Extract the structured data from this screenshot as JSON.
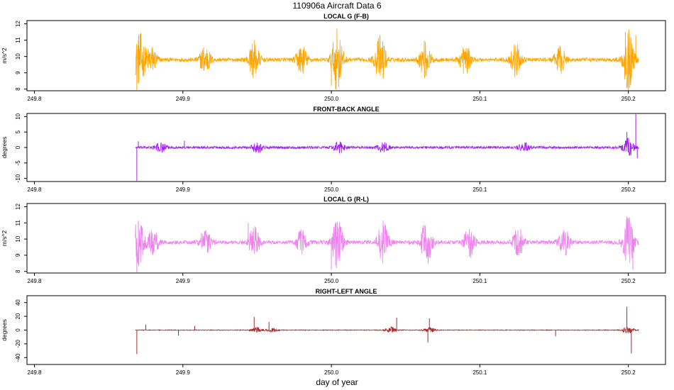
{
  "figure": {
    "title": "110906a   Aircraft Data 6",
    "xlabel": "day of year"
  },
  "chart_data": [
    {
      "type": "line",
      "title": "LOCAL G (F-B)",
      "ylabel": "m/s^2",
      "color": "#FFA500",
      "xlim": [
        249.795,
        250.225
      ],
      "ylim": [
        7.9,
        12.2
      ],
      "xticks": [
        249.8,
        249.9,
        250.0,
        250.1,
        250.2
      ],
      "xtick_labels": [
        "249.8",
        "249.9",
        "250.0",
        "250.1",
        "250.2"
      ],
      "yticks": [
        8,
        9,
        10,
        11,
        12
      ],
      "ytick_labels": [
        "8",
        "9",
        "10",
        "11",
        "12"
      ],
      "data_range": [
        249.868,
        250.207
      ],
      "baseline": 9.8,
      "noise": 0.12,
      "bursts": [
        {
          "x": 249.871,
          "amp": 1.6
        },
        {
          "x": 249.879,
          "amp": 0.8
        },
        {
          "x": 249.915,
          "amp": 0.9
        },
        {
          "x": 249.948,
          "amp": 1.1
        },
        {
          "x": 249.98,
          "amp": 0.9
        },
        {
          "x": 250.004,
          "amp": 1.9
        },
        {
          "x": 250.033,
          "amp": 1.5
        },
        {
          "x": 250.063,
          "amp": 1.1
        },
        {
          "x": 250.09,
          "amp": 0.9
        },
        {
          "x": 250.124,
          "amp": 1.0
        },
        {
          "x": 250.154,
          "amp": 0.8
        },
        {
          "x": 250.2,
          "amp": 1.8
        }
      ],
      "spikes": [
        {
          "x": 249.869,
          "v": 7.95
        },
        {
          "x": 249.87,
          "v": 11.0
        },
        {
          "x": 250.0,
          "v": 8.2
        },
        {
          "x": 250.198,
          "v": 11.5
        },
        {
          "x": 250.2,
          "v": 8.0
        },
        {
          "x": 250.205,
          "v": 11.3
        }
      ]
    },
    {
      "type": "line",
      "title": "FRONT-BACK ANGLE",
      "ylabel": "degrees",
      "color": "#A020F0",
      "xlim": [
        249.795,
        250.225
      ],
      "ylim": [
        -11.0,
        11.0
      ],
      "xticks": [
        249.8,
        249.9,
        250.0,
        250.1,
        250.2
      ],
      "xtick_labels": [
        "249.8",
        "249.9",
        "250.0",
        "250.1",
        "250.2"
      ],
      "yticks": [
        -10,
        -5,
        0,
        5,
        10
      ],
      "ytick_labels": [
        "-10",
        "-5",
        "0",
        "5",
        "10"
      ],
      "data_range": [
        249.868,
        250.207
      ],
      "baseline": 0.0,
      "noise": 0.4,
      "bursts": [
        {
          "x": 249.885,
          "amp": 1.5
        },
        {
          "x": 249.95,
          "amp": 1.6
        },
        {
          "x": 250.005,
          "amp": 1.8
        },
        {
          "x": 250.035,
          "amp": 1.6
        },
        {
          "x": 250.13,
          "amp": 1.4
        },
        {
          "x": 250.2,
          "amp": 2.8
        }
      ],
      "spikes": [
        {
          "x": 249.869,
          "v": -10.8
        },
        {
          "x": 249.87,
          "v": 2.0
        },
        {
          "x": 249.901,
          "v": 2.2
        },
        {
          "x": 250.199,
          "v": 5.0
        },
        {
          "x": 250.205,
          "v": 10.8
        },
        {
          "x": 250.206,
          "v": -3.5
        }
      ]
    },
    {
      "type": "line",
      "title": "LOCAL G (R-L)",
      "ylabel": "m/s^2",
      "color": "#EE82EE",
      "xlim": [
        249.795,
        250.225
      ],
      "ylim": [
        7.9,
        12.2
      ],
      "xticks": [
        249.8,
        249.9,
        250.0,
        250.1,
        250.2
      ],
      "xtick_labels": [
        "249.8",
        "249.9",
        "250.0",
        "250.1",
        "250.2"
      ],
      "yticks": [
        8,
        9,
        10,
        11,
        12
      ],
      "ytick_labels": [
        "8",
        "9",
        "10",
        "11",
        "12"
      ],
      "data_range": [
        249.868,
        250.207
      ],
      "baseline": 9.8,
      "noise": 0.12,
      "bursts": [
        {
          "x": 249.87,
          "amp": 1.4
        },
        {
          "x": 249.88,
          "amp": 0.8
        },
        {
          "x": 249.915,
          "amp": 0.8
        },
        {
          "x": 249.948,
          "amp": 0.9
        },
        {
          "x": 249.98,
          "amp": 0.8
        },
        {
          "x": 250.004,
          "amp": 1.6
        },
        {
          "x": 250.035,
          "amp": 1.6
        },
        {
          "x": 250.064,
          "amp": 1.4
        },
        {
          "x": 250.093,
          "amp": 1.0
        },
        {
          "x": 250.126,
          "amp": 0.9
        },
        {
          "x": 250.157,
          "amp": 0.8
        },
        {
          "x": 250.2,
          "amp": 1.7
        }
      ],
      "spikes": [
        {
          "x": 249.869,
          "v": 7.95
        },
        {
          "x": 249.87,
          "v": 11.1
        },
        {
          "x": 249.944,
          "v": 11.0
        },
        {
          "x": 250.0,
          "v": 8.1
        },
        {
          "x": 250.199,
          "v": 11.4
        },
        {
          "x": 250.203,
          "v": 8.1
        }
      ]
    },
    {
      "type": "line",
      "title": "RIGHT-LEFT ANGLE",
      "ylabel": "degrees",
      "color": "#A52A2A",
      "xlim": [
        249.795,
        250.225
      ],
      "ylim": [
        -50,
        50
      ],
      "xticks": [
        249.8,
        249.9,
        250.0,
        250.1,
        250.2
      ],
      "xtick_labels": [
        "249.8",
        "249.9",
        "250.0",
        "250.1",
        "250.2"
      ],
      "yticks": [
        -40,
        -20,
        0,
        20,
        40
      ],
      "ytick_labels": [
        "-40",
        "-20",
        "0",
        "20",
        "40"
      ],
      "data_range": [
        249.868,
        250.207
      ],
      "baseline": 0.0,
      "noise": 0.5,
      "bursts": [
        {
          "x": 249.95,
          "amp": 4.0
        },
        {
          "x": 249.96,
          "amp": 3.0
        },
        {
          "x": 250.04,
          "amp": 5.0
        },
        {
          "x": 250.066,
          "amp": 4.0
        },
        {
          "x": 250.2,
          "amp": 6.0
        }
      ],
      "spikes": [
        {
          "x": 249.869,
          "v": -35.0
        },
        {
          "x": 249.875,
          "v": 8.0
        },
        {
          "x": 249.897,
          "v": -8.0
        },
        {
          "x": 249.908,
          "v": 6.0
        },
        {
          "x": 249.948,
          "v": 19.0
        },
        {
          "x": 249.958,
          "v": 12.0
        },
        {
          "x": 250.044,
          "v": 18.0
        },
        {
          "x": 250.065,
          "v": -18.0
        },
        {
          "x": 250.066,
          "v": 17.0
        },
        {
          "x": 250.151,
          "v": -9.0
        },
        {
          "x": 250.199,
          "v": 34.0
        },
        {
          "x": 250.202,
          "v": -34.0
        }
      ]
    }
  ]
}
